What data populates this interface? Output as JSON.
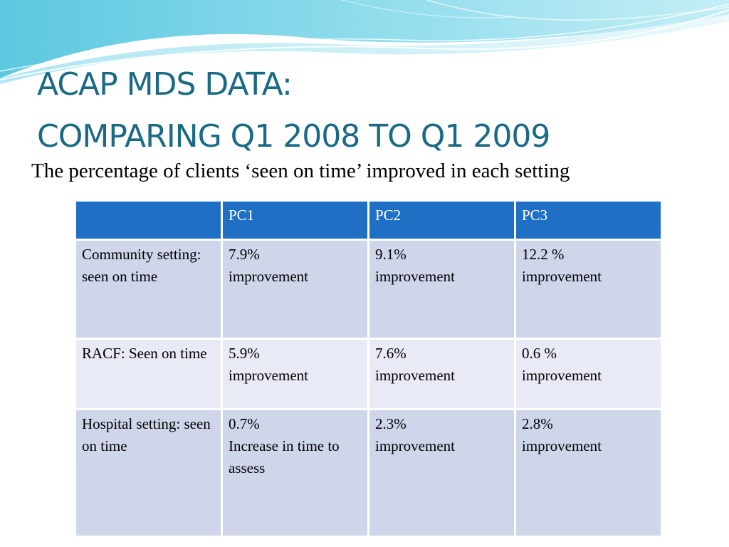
{
  "title": {
    "line1": "ACAP MDS DATA:",
    "line2": "COMPARING Q1 2008 TO Q1 2009"
  },
  "subtitle": "The percentage of clients ‘seen on time’ improved in each setting",
  "colors": {
    "title": "#1a6a86",
    "header_bg": "#1f6fc5",
    "row_dark": "#cfd6ea",
    "row_light": "#e8ebf5"
  },
  "table": {
    "headers": [
      "",
      "PC1",
      "PC2",
      "PC3"
    ],
    "rows": [
      {
        "label": "Community setting: seen on time",
        "cells": [
          {
            "value": "7.9%",
            "note": "improvement"
          },
          {
            "value": "9.1%",
            "note": "improvement"
          },
          {
            "value": "12.2 %",
            "note": "improvement"
          }
        ]
      },
      {
        "label": "RACF: Seen on time",
        "cells": [
          {
            "value": "5.9%",
            "note": "improvement"
          },
          {
            "value": "7.6%",
            "note": "improvement"
          },
          {
            "value": "0.6 %",
            "note": "improvement"
          }
        ]
      },
      {
        "label": "Hospital setting: seen on time",
        "cells": [
          {
            "value": "0.7%",
            "note": "Increase in time to assess"
          },
          {
            "value": "2.3%",
            "note": "improvement"
          },
          {
            "value": "2.8%",
            "note": "improvement"
          }
        ]
      }
    ]
  }
}
